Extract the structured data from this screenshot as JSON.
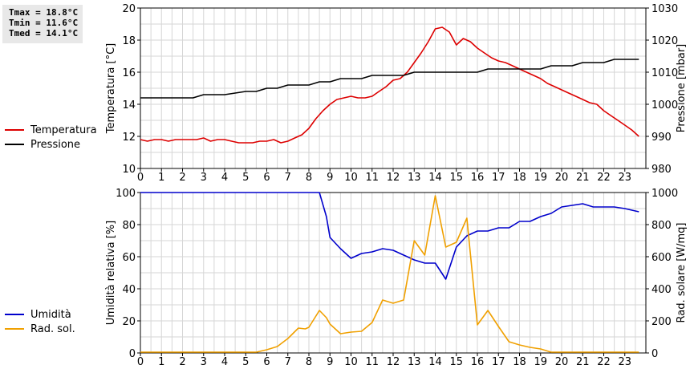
{
  "stats": {
    "tmax": "Tmax = 18.8°C",
    "tmin": "Tmin = 11.6°C",
    "tmed": "Tmed = 14.1°C"
  },
  "chart_data": [
    {
      "type": "line",
      "ylabel": "Temperatura [°C]",
      "y2label": "Pressione [mbar]",
      "xlim": [
        0,
        24
      ],
      "ylim": [
        10,
        20
      ],
      "y2lim": [
        980,
        1030
      ],
      "xticks": [
        0,
        1,
        2,
        3,
        4,
        5,
        6,
        7,
        8,
        9,
        10,
        11,
        12,
        13,
        14,
        15,
        16,
        17,
        18,
        19,
        20,
        21,
        22,
        23
      ],
      "yticks": [
        10,
        12,
        14,
        16,
        18,
        20
      ],
      "y2ticks": [
        980,
        990,
        1000,
        1010,
        1020,
        1030
      ],
      "grid": true,
      "legend_position": "left",
      "series": [
        {
          "name": "Temperatura",
          "color": "#dd0000",
          "axis": "left",
          "x": [
            0,
            0.33,
            0.67,
            1,
            1.33,
            1.67,
            2,
            2.33,
            2.67,
            3,
            3.33,
            3.67,
            4,
            4.33,
            4.67,
            5,
            5.33,
            5.67,
            6,
            6.33,
            6.67,
            7,
            7.33,
            7.67,
            8,
            8.33,
            8.67,
            9,
            9.33,
            9.67,
            10,
            10.33,
            10.67,
            11,
            11.33,
            11.67,
            12,
            12.33,
            12.67,
            13,
            13.33,
            13.67,
            14,
            14.33,
            14.67,
            15,
            15.33,
            15.67,
            16,
            16.33,
            16.67,
            17,
            17.33,
            17.67,
            18,
            18.33,
            18.67,
            19,
            19.33,
            19.67,
            20,
            20.33,
            20.67,
            21,
            21.33,
            21.67,
            22,
            22.33,
            22.67,
            23,
            23.33,
            23.67
          ],
          "values": [
            11.8,
            11.7,
            11.8,
            11.8,
            11.7,
            11.8,
            11.8,
            11.8,
            11.8,
            11.9,
            11.7,
            11.8,
            11.8,
            11.7,
            11.6,
            11.6,
            11.6,
            11.7,
            11.7,
            11.8,
            11.6,
            11.7,
            11.9,
            12.1,
            12.5,
            13.1,
            13.6,
            14.0,
            14.3,
            14.4,
            14.5,
            14.4,
            14.4,
            14.5,
            14.8,
            15.1,
            15.5,
            15.6,
            16.0,
            16.6,
            17.2,
            17.9,
            18.7,
            18.8,
            18.5,
            17.7,
            18.1,
            17.9,
            17.5,
            17.2,
            16.9,
            16.7,
            16.6,
            16.4,
            16.2,
            16.0,
            15.8,
            15.6,
            15.3,
            15.1,
            14.9,
            14.7,
            14.5,
            14.3,
            14.1,
            14.0,
            13.6,
            13.3,
            13.0,
            12.7,
            12.4,
            12.0
          ]
        },
        {
          "name": "Pressione",
          "color": "#000000",
          "axis": "right",
          "x": [
            0,
            1,
            2,
            2.5,
            3,
            4,
            5,
            5.5,
            6,
            6.5,
            7,
            8,
            8.5,
            9,
            9.5,
            10,
            10.5,
            11,
            11.5,
            12,
            12.5,
            13,
            14,
            15,
            15.5,
            16,
            16.5,
            17,
            18,
            19,
            19.5,
            20,
            20.5,
            21,
            21.5,
            22,
            22.5,
            23,
            23.67
          ],
          "values": [
            1002,
            1002,
            1002,
            1002,
            1003,
            1003,
            1004,
            1004,
            1005,
            1005,
            1006,
            1006,
            1007,
            1007,
            1008,
            1008,
            1008,
            1009,
            1009,
            1009,
            1009,
            1010,
            1010,
            1010,
            1010,
            1010,
            1011,
            1011,
            1011,
            1011,
            1012,
            1012,
            1012,
            1013,
            1013,
            1013,
            1014,
            1014,
            1014
          ]
        }
      ]
    },
    {
      "type": "line",
      "ylabel": "Umidità relativa [%]",
      "y2label": "Rad. solare [W/mq]",
      "xlim": [
        0,
        24
      ],
      "ylim": [
        0,
        100
      ],
      "y2lim": [
        0,
        1000
      ],
      "xticks": [
        0,
        1,
        2,
        3,
        4,
        5,
        6,
        7,
        8,
        9,
        10,
        11,
        12,
        13,
        14,
        15,
        16,
        17,
        18,
        19,
        20,
        21,
        22,
        23
      ],
      "yticks": [
        0,
        20,
        40,
        60,
        80,
        100
      ],
      "y2ticks": [
        0,
        200,
        400,
        600,
        800,
        1000
      ],
      "grid": true,
      "legend_position": "left",
      "series": [
        {
          "name": "Umidità",
          "color": "#0000cc",
          "axis": "left",
          "x": [
            0,
            8,
            8.5,
            8.83,
            9,
            9.5,
            10,
            10.5,
            11,
            11.5,
            12,
            12.5,
            13,
            13.5,
            14,
            14.5,
            15,
            15.5,
            16,
            16.5,
            17,
            17.5,
            18,
            18.5,
            19,
            19.5,
            20,
            20.5,
            21,
            21.5,
            22,
            22.5,
            23,
            23.67
          ],
          "values": [
            100,
            100,
            100,
            85,
            72,
            65,
            59,
            62,
            63,
            65,
            64,
            61,
            58,
            56,
            56,
            46,
            66,
            73,
            76,
            76,
            78,
            78,
            82,
            82,
            85,
            87,
            91,
            92,
            93,
            91,
            91,
            91,
            90,
            88
          ]
        },
        {
          "name": "Rad. sol.",
          "color": "#f0a000",
          "axis": "right",
          "x": [
            0,
            5.5,
            6,
            6.5,
            7,
            7.5,
            7.83,
            8,
            8.5,
            8.83,
            9,
            9.5,
            10,
            10.5,
            11,
            11.5,
            12,
            12.5,
            13,
            13.5,
            14,
            14.5,
            15,
            15.5,
            16,
            16.5,
            17,
            17.5,
            18,
            18.5,
            19,
            19.5,
            20,
            20.5,
            21,
            21.5,
            22,
            22.5,
            23,
            23.67
          ],
          "values": [
            5,
            5,
            20,
            40,
            90,
            155,
            150,
            160,
            265,
            220,
            180,
            120,
            130,
            135,
            190,
            330,
            310,
            330,
            700,
            610,
            980,
            660,
            690,
            840,
            175,
            265,
            165,
            70,
            50,
            35,
            25,
            5,
            5,
            5,
            5,
            5,
            5,
            5,
            5,
            5
          ]
        }
      ]
    }
  ]
}
